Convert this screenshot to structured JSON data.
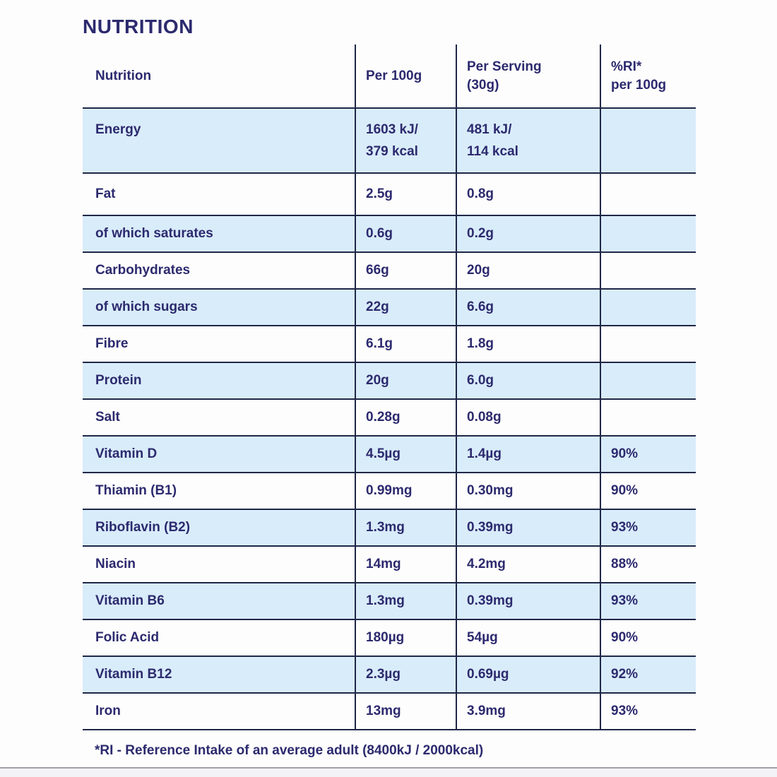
{
  "page": {
    "title": "NUTRITION",
    "footnote": "*RI - Reference Intake of an average adult (8400kJ / 2000kcal)"
  },
  "table": {
    "headers": {
      "nutrition": "Nutrition",
      "per_100g": "Per 100g",
      "per_serving": "Per Serving\n(30g)",
      "ri": "%RI*\nper 100g"
    },
    "rows": [
      {
        "name": "Energy",
        "per_100g": "1603 kJ/\n379 kcal",
        "per_serving": "481 kJ/\n114 kcal",
        "ri": ""
      },
      {
        "name": "Fat",
        "per_100g": "2.5g",
        "per_serving": "0.8g",
        "ri": ""
      },
      {
        "name": "of which saturates",
        "per_100g": "0.6g",
        "per_serving": "0.2g",
        "ri": ""
      },
      {
        "name": "Carbohydrates",
        "per_100g": "66g",
        "per_serving": "20g",
        "ri": ""
      },
      {
        "name": "of which sugars",
        "per_100g": "22g",
        "per_serving": "6.6g",
        "ri": ""
      },
      {
        "name": "Fibre",
        "per_100g": "6.1g",
        "per_serving": "1.8g",
        "ri": ""
      },
      {
        "name": "Protein",
        "per_100g": "20g",
        "per_serving": "6.0g",
        "ri": ""
      },
      {
        "name": "Salt",
        "per_100g": "0.28g",
        "per_serving": "0.08g",
        "ri": ""
      },
      {
        "name": "Vitamin D",
        "per_100g": "4.5µg",
        "per_serving": "1.4µg",
        "ri": "90%"
      },
      {
        "name": "Thiamin (B1)",
        "per_100g": "0.99mg",
        "per_serving": "0.30mg",
        "ri": "90%"
      },
      {
        "name": "Riboflavin (B2)",
        "per_100g": "1.3mg",
        "per_serving": "0.39mg",
        "ri": "93%"
      },
      {
        "name": "Niacin",
        "per_100g": "14mg",
        "per_serving": "4.2mg",
        "ri": "88%"
      },
      {
        "name": "Vitamin B6",
        "per_100g": "1.3mg",
        "per_serving": "0.39mg",
        "ri": "93%"
      },
      {
        "name": "Folic Acid",
        "per_100g": "180µg",
        "per_serving": "54µg",
        "ri": "90%"
      },
      {
        "name": "Vitamin B12",
        "per_100g": "2.3µg",
        "per_serving": "0.69µg",
        "ri": "92%"
      },
      {
        "name": "Iron",
        "per_100g": "13mg",
        "per_serving": "3.9mg",
        "ri": "93%"
      }
    ]
  },
  "theme": {
    "ink": "#2c2a6e",
    "line": "#1f2747",
    "row-blue": "#d9ecfa",
    "page-bg": "#fdfdfd"
  }
}
